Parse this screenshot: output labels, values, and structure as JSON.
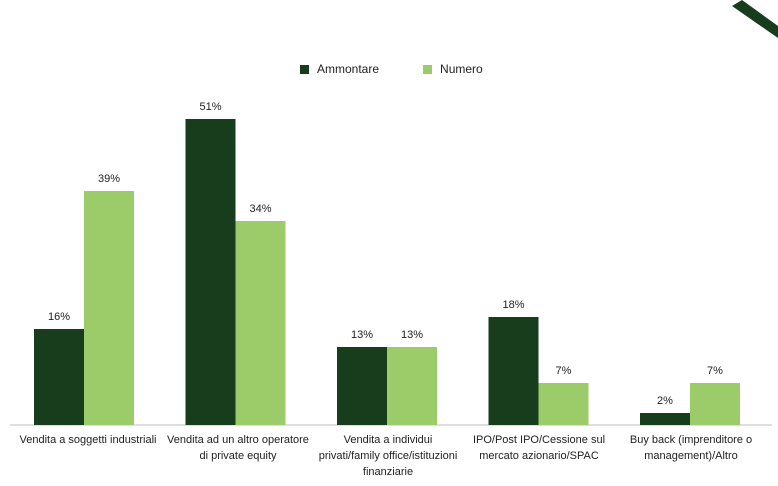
{
  "colors": {
    "ammontare": "#173d1d",
    "numero": "#9ccc6a",
    "axis": "#bfbfbf",
    "accent": "#173d1d"
  },
  "legend": {
    "items": [
      {
        "label": "Ammontare"
      },
      {
        "label": "Numero"
      }
    ]
  },
  "chart_data": {
    "type": "bar",
    "categories": [
      "Vendita a soggetti industriali",
      "Vendita ad un altro operatore di private equity",
      "Vendita a individui privati/family office/istituzioni finanziarie",
      "IPO/Post IPO/Cessione sul mercato azionario/SPAC",
      "Buy back (imprenditore o management)/Altro"
    ],
    "series": [
      {
        "name": "Ammontare",
        "values": [
          16,
          51,
          13,
          18,
          2
        ],
        "labels": [
          "16%",
          "51%",
          "13%",
          "18%",
          "2%"
        ]
      },
      {
        "name": "Numero",
        "values": [
          39,
          34,
          13,
          7,
          7
        ],
        "labels": [
          "39%",
          "34%",
          "13%",
          "7%",
          "7%"
        ]
      }
    ],
    "ylim": [
      0,
      55
    ],
    "grid": false,
    "legend_position": "top-center"
  }
}
